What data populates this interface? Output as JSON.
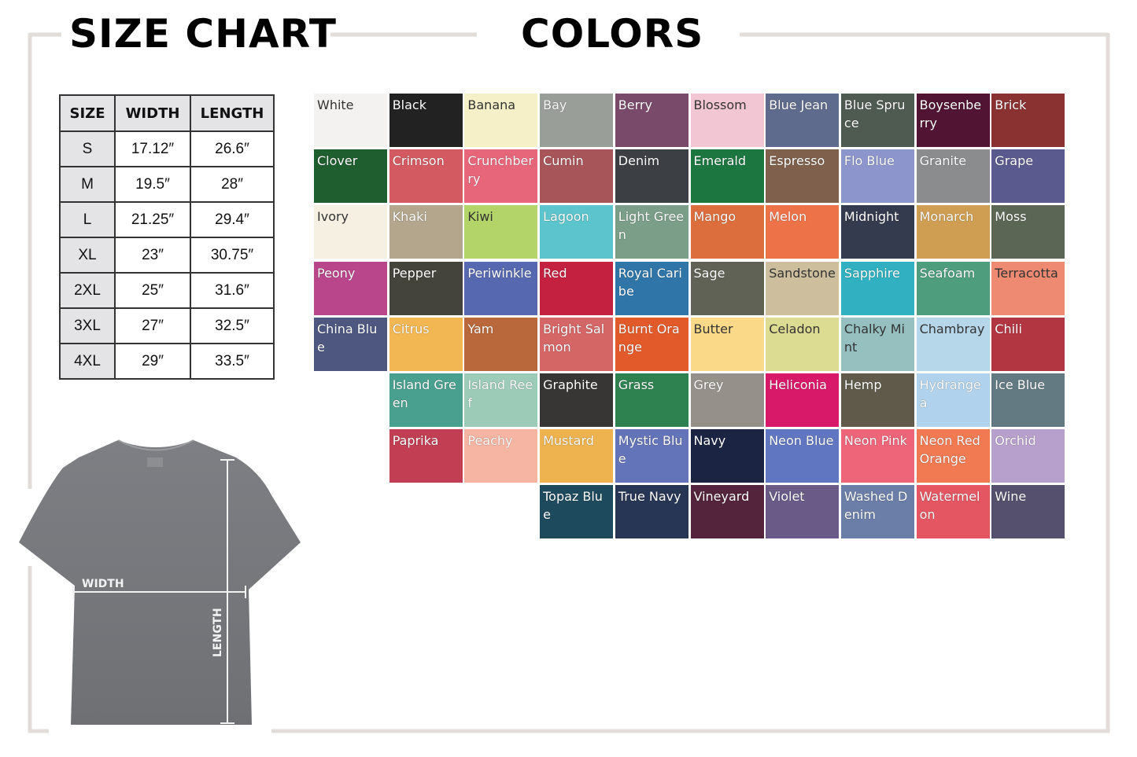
{
  "size_chart": {
    "title": "SIZE CHART",
    "headers": [
      "SIZE",
      "WIDTH",
      "LENGTH"
    ],
    "rows": [
      [
        "S",
        "17.12″",
        "26.6″"
      ],
      [
        "M",
        "19.5″",
        "28″"
      ],
      [
        "L",
        "21.25″",
        "29.4″"
      ],
      [
        "XL",
        "23″",
        "30.75″"
      ],
      [
        "2XL",
        "25″",
        "31.6″"
      ],
      [
        "3XL",
        "27″",
        "32.5″"
      ],
      [
        "4XL",
        "29″",
        "33.5″"
      ]
    ]
  },
  "shirt_diagram": {
    "width_label": "WIDTH",
    "length_label": "LENGTH",
    "shirt_color": "#7a7c80"
  },
  "colors": {
    "title": "COLORS",
    "swatches": [
      {
        "name": "White",
        "hex": "#f3f2f0",
        "row": 0,
        "col": 0,
        "dark": true
      },
      {
        "name": "Black",
        "hex": "#222222",
        "row": 0,
        "col": 1
      },
      {
        "name": "Banana",
        "hex": "#f5f0c8",
        "row": 0,
        "col": 2,
        "dark": true
      },
      {
        "name": "Bay",
        "hex": "#9a9e98",
        "row": 0,
        "col": 3
      },
      {
        "name": "Berry",
        "hex": "#7a4a6a",
        "row": 0,
        "col": 4
      },
      {
        "name": "Blossom",
        "hex": "#f2c6d2",
        "row": 0,
        "col": 5,
        "dark": true
      },
      {
        "name": "Blue Jean",
        "hex": "#5f6b8c",
        "row": 0,
        "col": 6
      },
      {
        "name": "Blue Spruce",
        "hex": "#4f5a50",
        "row": 0,
        "col": 7
      },
      {
        "name": "Boysenberry",
        "hex": "#521433",
        "row": 0,
        "col": 8
      },
      {
        "name": "Brick",
        "hex": "#8a3232",
        "row": 0,
        "col": 9
      },
      {
        "name": "Clover",
        "hex": "#1f5e2e",
        "row": 1,
        "col": 0
      },
      {
        "name": "Crimson",
        "hex": "#d35a60",
        "row": 1,
        "col": 1
      },
      {
        "name": "Crunchberry",
        "hex": "#e8667a",
        "row": 1,
        "col": 2
      },
      {
        "name": "Cumin",
        "hex": "#a8555a",
        "row": 1,
        "col": 3
      },
      {
        "name": "Denim",
        "hex": "#3c3f44",
        "row": 1,
        "col": 4
      },
      {
        "name": "Emerald",
        "hex": "#1c7640",
        "row": 1,
        "col": 5
      },
      {
        "name": "Espresso",
        "hex": "#7e604c",
        "row": 1,
        "col": 6
      },
      {
        "name": "Flo Blue",
        "hex": "#8c96cc",
        "row": 1,
        "col": 7
      },
      {
        "name": "Granite",
        "hex": "#8a8c8e",
        "row": 1,
        "col": 8
      },
      {
        "name": "Grape",
        "hex": "#5a5a8e",
        "row": 1,
        "col": 9
      },
      {
        "name": "Ivory",
        "hex": "#f6f0e2",
        "row": 2,
        "col": 0,
        "dark": true
      },
      {
        "name": "Khaki",
        "hex": "#b3a68c",
        "row": 2,
        "col": 1
      },
      {
        "name": "Kiwi",
        "hex": "#b2d468",
        "row": 2,
        "col": 2,
        "dark": true
      },
      {
        "name": "Lagoon",
        "hex": "#5cc4cc",
        "row": 2,
        "col": 3
      },
      {
        "name": "Light Green",
        "hex": "#7a9e88",
        "row": 2,
        "col": 4
      },
      {
        "name": "Mango",
        "hex": "#dc6d3c",
        "row": 2,
        "col": 5
      },
      {
        "name": "Melon",
        "hex": "#ee7248",
        "row": 2,
        "col": 6
      },
      {
        "name": "Midnight",
        "hex": "#353b4e",
        "row": 2,
        "col": 7
      },
      {
        "name": "Monarch",
        "hex": "#cf9e52",
        "row": 2,
        "col": 8
      },
      {
        "name": "Moss",
        "hex": "#5c6654",
        "row": 2,
        "col": 9
      },
      {
        "name": "Peony",
        "hex": "#b9458a",
        "row": 3,
        "col": 0
      },
      {
        "name": "Pepper",
        "hex": "#45443c",
        "row": 3,
        "col": 1
      },
      {
        "name": "Periwinkle",
        "hex": "#5668b0",
        "row": 3,
        "col": 2
      },
      {
        "name": "Red",
        "hex": "#c42040",
        "row": 3,
        "col": 3
      },
      {
        "name": "Royal Caribe",
        "hex": "#2f75a8",
        "row": 3,
        "col": 4
      },
      {
        "name": "Sage",
        "hex": "#5f6255",
        "row": 3,
        "col": 5
      },
      {
        "name": "Sandstone",
        "hex": "#cdbf9e",
        "row": 3,
        "col": 6,
        "dark": true
      },
      {
        "name": "Sapphire",
        "hex": "#30b0c0",
        "row": 3,
        "col": 7
      },
      {
        "name": "Seafoam",
        "hex": "#4e9e7e",
        "row": 3,
        "col": 8
      },
      {
        "name": "Terracotta",
        "hex": "#ee8a72",
        "row": 3,
        "col": 9,
        "dark": true
      },
      {
        "name": "China Blue",
        "hex": "#4d5780",
        "row": 4,
        "col": 0
      },
      {
        "name": "Citrus",
        "hex": "#f2b652",
        "row": 4,
        "col": 1
      },
      {
        "name": "Yam",
        "hex": "#b8683a",
        "row": 4,
        "col": 2
      },
      {
        "name": "Bright Salmon",
        "hex": "#d46666",
        "row": 4,
        "col": 3
      },
      {
        "name": "Burnt Orange",
        "hex": "#e25a2a",
        "row": 4,
        "col": 4
      },
      {
        "name": "Butter",
        "hex": "#fada88",
        "row": 4,
        "col": 5,
        "dark": true
      },
      {
        "name": "Celadon",
        "hex": "#dcdc92",
        "row": 4,
        "col": 6,
        "dark": true
      },
      {
        "name": "Chalky Mint",
        "hex": "#96c0c0",
        "row": 4,
        "col": 7,
        "dark": true
      },
      {
        "name": "Chambray",
        "hex": "#b6d6ea",
        "row": 4,
        "col": 8,
        "dark": true
      },
      {
        "name": "Chili",
        "hex": "#b23642",
        "row": 4,
        "col": 9
      },
      {
        "name": "Island Green",
        "hex": "#4aa08e",
        "row": 5,
        "col": 1
      },
      {
        "name": "Island Reef",
        "hex": "#9cccb8",
        "row": 5,
        "col": 2
      },
      {
        "name": "Graphite",
        "hex": "#383634",
        "row": 5,
        "col": 3
      },
      {
        "name": "Grass",
        "hex": "#2e8250",
        "row": 5,
        "col": 4
      },
      {
        "name": "Grey",
        "hex": "#96908a",
        "row": 5,
        "col": 5
      },
      {
        "name": "Heliconia",
        "hex": "#d81868",
        "row": 5,
        "col": 6
      },
      {
        "name": "Hemp",
        "hex": "#5f5a4a",
        "row": 5,
        "col": 7
      },
      {
        "name": "Hydrangea",
        "hex": "#b0d2ec",
        "row": 5,
        "col": 8
      },
      {
        "name": "Ice Blue",
        "hex": "#637a82",
        "row": 5,
        "col": 9
      },
      {
        "name": "Paprika",
        "hex": "#c23e52",
        "row": 6,
        "col": 1
      },
      {
        "name": "Peachy",
        "hex": "#f6b4a2",
        "row": 6,
        "col": 2
      },
      {
        "name": "Mustard",
        "hex": "#eeb24e",
        "row": 6,
        "col": 3
      },
      {
        "name": "Mystic Blue",
        "hex": "#6474b8",
        "row": 6,
        "col": 4
      },
      {
        "name": "Navy",
        "hex": "#1c2444",
        "row": 6,
        "col": 5
      },
      {
        "name": "Neon Blue",
        "hex": "#6076c0",
        "row": 6,
        "col": 6
      },
      {
        "name": "Neon Pink",
        "hex": "#ee6478",
        "row": 6,
        "col": 7
      },
      {
        "name": "Neon Red Orange",
        "hex": "#f27a52",
        "row": 6,
        "col": 8
      },
      {
        "name": "Orchid",
        "hex": "#b8a0cc",
        "row": 6,
        "col": 9
      },
      {
        "name": "Topaz Blue",
        "hex": "#1e4a5e",
        "row": 7,
        "col": 3
      },
      {
        "name": "True Navy",
        "hex": "#283656",
        "row": 7,
        "col": 4
      },
      {
        "name": "Vineyard",
        "hex": "#54233c",
        "row": 7,
        "col": 5
      },
      {
        "name": "Violet",
        "hex": "#6a5a88",
        "row": 7,
        "col": 6
      },
      {
        "name": "Washed Denim",
        "hex": "#6a7ea8",
        "row": 7,
        "col": 7
      },
      {
        "name": "Watermelon",
        "hex": "#e45662",
        "row": 7,
        "col": 8
      },
      {
        "name": "Wine",
        "hex": "#54506e",
        "row": 7,
        "col": 9
      }
    ]
  },
  "frame_color": "#e2ddd8"
}
